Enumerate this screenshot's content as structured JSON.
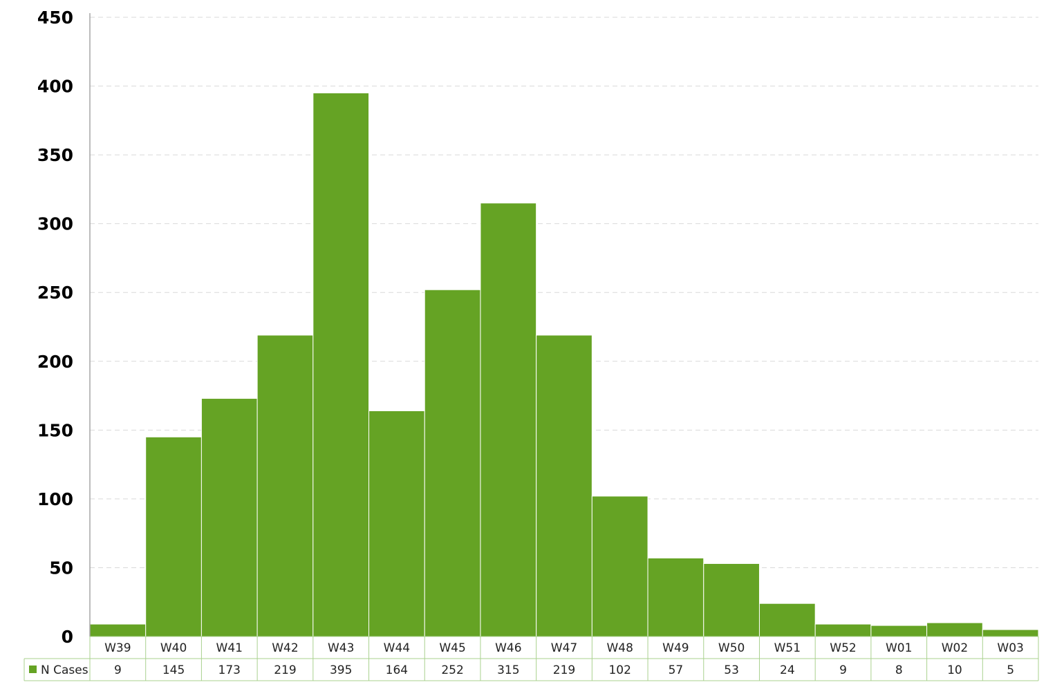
{
  "colors": {
    "bar": "#65a324",
    "bar_stroke": "#ffffff",
    "grid": "#d9d9d9",
    "axis": "#a6a6a6",
    "table_border": "#a9d18e"
  },
  "chart_data": {
    "type": "bar",
    "title": "",
    "xlabel": "",
    "ylabel": "",
    "ylim": [
      0,
      450
    ],
    "yticks": [
      0,
      50,
      100,
      150,
      200,
      250,
      300,
      350,
      400,
      450
    ],
    "grid": true,
    "legend_position": "data table, bottom-left",
    "categories": [
      "W39",
      "W40",
      "W41",
      "W42",
      "W43",
      "W44",
      "W45",
      "W46",
      "W47",
      "W48",
      "W49",
      "W50",
      "W51",
      "W52",
      "W01",
      "W02",
      "W03"
    ],
    "series": [
      {
        "name": "N Cases",
        "values": [
          9,
          145,
          173,
          219,
          395,
          164,
          252,
          315,
          219,
          102,
          57,
          53,
          24,
          9,
          8,
          10,
          5
        ]
      }
    ]
  }
}
